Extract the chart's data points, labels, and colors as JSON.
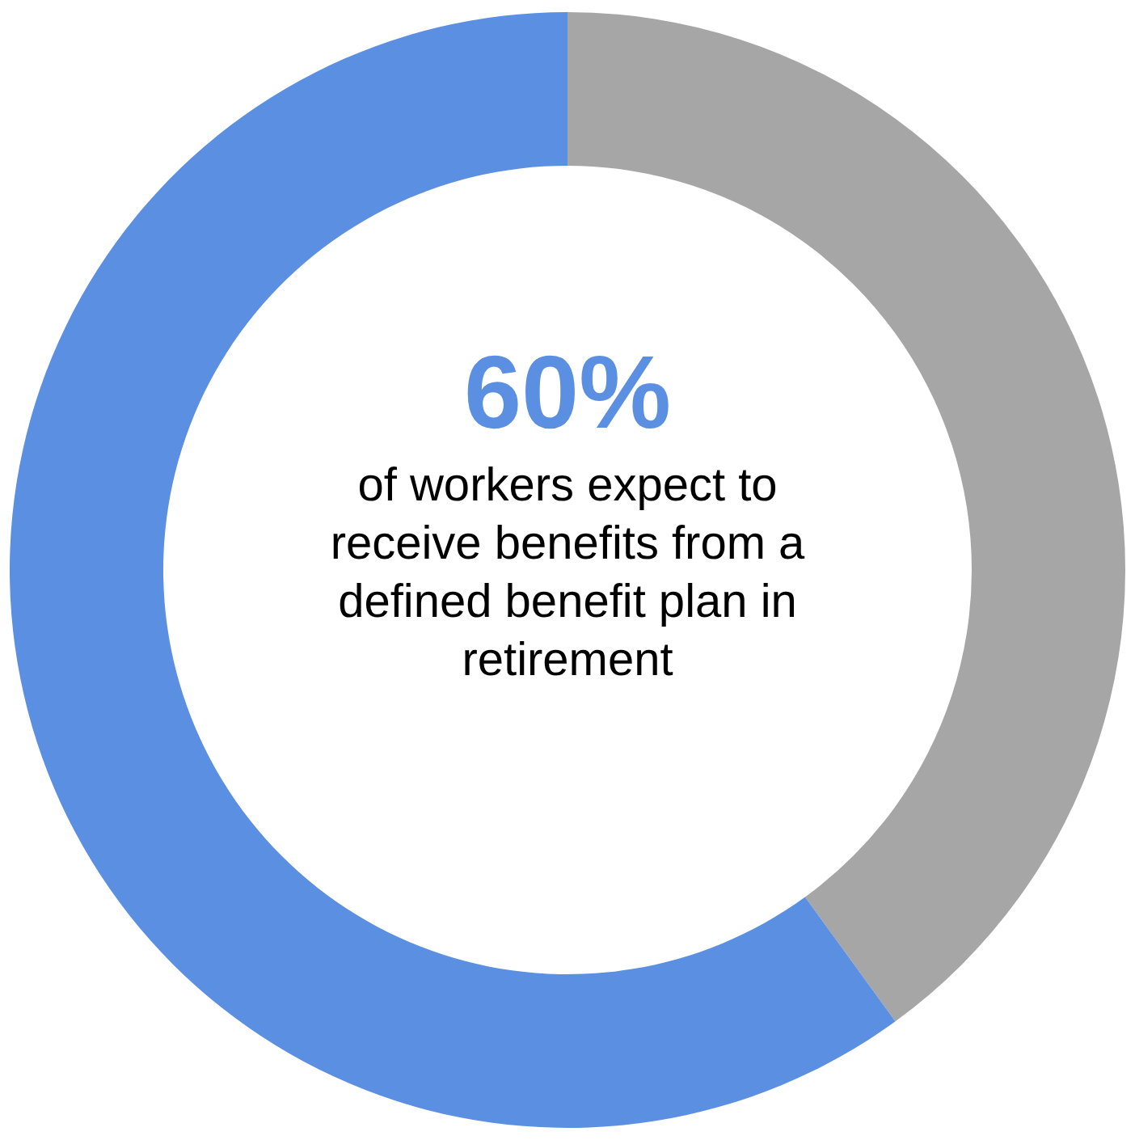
{
  "chart_data": {
    "type": "donut",
    "categories": [
      null,
      null
    ],
    "values": [
      40,
      60
    ],
    "colors": [
      "#a6a6a6",
      "#5b8fe2"
    ],
    "value_labels": [
      null,
      "60%"
    ],
    "annotations": [
      "of workers expect to receive benefits from a defined benefit plan in retirement"
    ],
    "legend": false
  }
}
